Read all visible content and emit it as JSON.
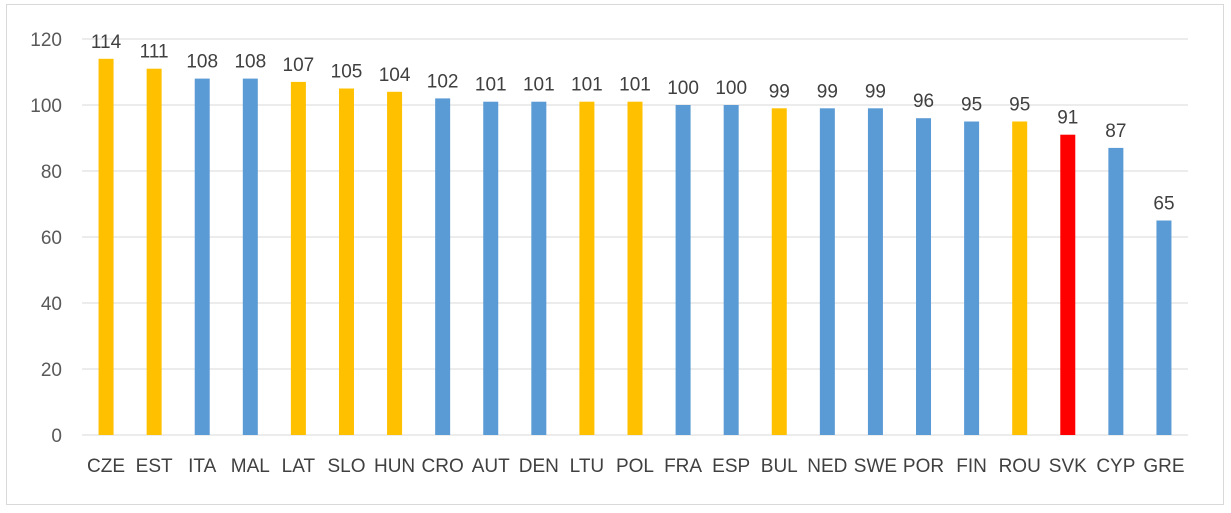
{
  "chart_data": {
    "type": "bar",
    "title": "",
    "xlabel": "",
    "ylabel": "",
    "ylim": [
      0,
      120
    ],
    "yticks": [
      0,
      20,
      40,
      60,
      80,
      100,
      120
    ],
    "grid": "horizontal",
    "legend": "none",
    "categories": [
      "CZE",
      "EST",
      "ITA",
      "MAL",
      "LAT",
      "SLO",
      "HUN",
      "CRO",
      "AUT",
      "DEN",
      "LTU",
      "POL",
      "FRA",
      "ESP",
      "BUL",
      "NED",
      "SWE",
      "POR",
      "FIN",
      "ROU",
      "SVK",
      "CYP",
      "GRE"
    ],
    "values": [
      114,
      111,
      108,
      108,
      107,
      105,
      104,
      102,
      101,
      101,
      101,
      101,
      100,
      100,
      99,
      99,
      99,
      96,
      95,
      95,
      91,
      87,
      65
    ],
    "bar_colors": [
      "#ffc000",
      "#ffc000",
      "#5b9bd5",
      "#5b9bd5",
      "#ffc000",
      "#ffc000",
      "#ffc000",
      "#5b9bd5",
      "#5b9bd5",
      "#5b9bd5",
      "#ffc000",
      "#ffc000",
      "#5b9bd5",
      "#5b9bd5",
      "#ffc000",
      "#5b9bd5",
      "#5b9bd5",
      "#5b9bd5",
      "#5b9bd5",
      "#ffc000",
      "#ff0000",
      "#5b9bd5",
      "#5b9bd5"
    ],
    "colors": {
      "blue": "#5b9bd5",
      "gold": "#ffc000",
      "highlight": "#ff0000",
      "grid": "#d9d9d9"
    }
  }
}
